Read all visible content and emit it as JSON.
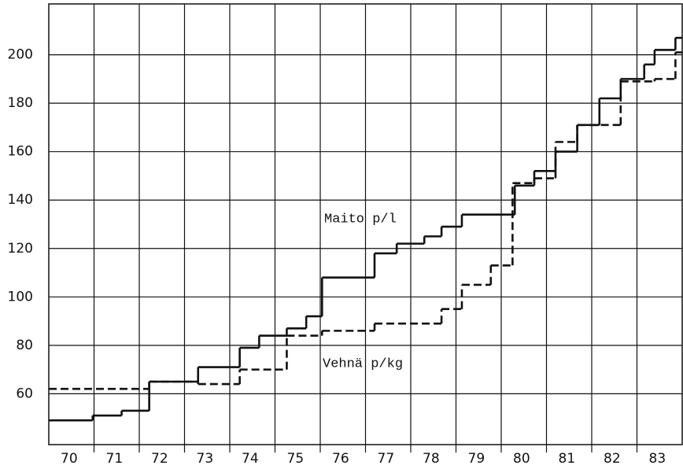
{
  "chart_data": {
    "type": "step",
    "categories": [
      "70",
      "71",
      "72",
      "73",
      "74",
      "75",
      "76",
      "77",
      "78",
      "79",
      "80",
      "81",
      "82",
      "83"
    ],
    "xlim": [
      70,
      84
    ],
    "ylim": [
      39,
      221
    ],
    "yticks": [
      60,
      80,
      100,
      120,
      140,
      160,
      180,
      200
    ],
    "grid": true,
    "series": [
      {
        "name": "Maito p/l",
        "color": "#111111",
        "dash": false,
        "x": [
          70.0,
          70.97,
          71.61,
          72.22,
          73.3,
          74.22,
          74.65,
          75.26,
          75.69,
          76.04,
          77.2,
          77.69,
          78.3,
          78.68,
          79.13,
          80.3,
          80.73,
          81.2,
          81.68,
          82.17,
          82.64,
          83.16,
          83.39,
          83.85
        ],
        "values": [
          49,
          51,
          53,
          65,
          71,
          79,
          84,
          87,
          92,
          108,
          118,
          122,
          125,
          129,
          134,
          146,
          152,
          160,
          171,
          182,
          190,
          196,
          202,
          207
        ]
      },
      {
        "name": "Vehnä p/kg",
        "color": "#111111",
        "dash": true,
        "x": [
          70.0,
          72.22,
          73.3,
          74.22,
          75.26,
          76.04,
          77.2,
          78.68,
          79.13,
          79.77,
          80.25,
          80.73,
          81.2,
          81.68,
          82.64,
          83.39,
          83.85
        ],
        "values": [
          62,
          65,
          64,
          70,
          84,
          86,
          89,
          95,
          105,
          113,
          147,
          149,
          164,
          171,
          189,
          190,
          201
        ]
      }
    ]
  }
}
